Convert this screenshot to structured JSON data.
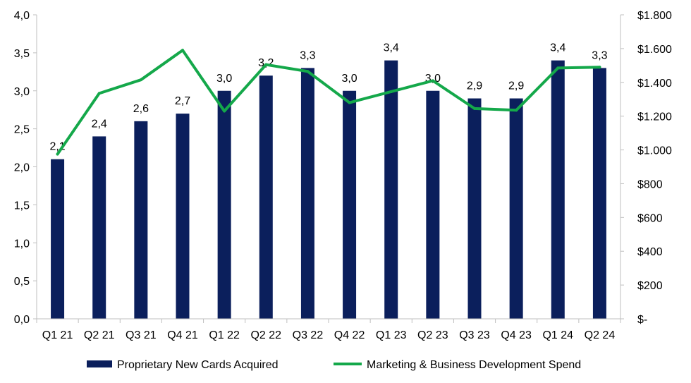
{
  "chart_data": {
    "type": "bar+line",
    "categories": [
      "Q1 21",
      "Q2 21",
      "Q3 21",
      "Q4 21",
      "Q1 22",
      "Q2 22",
      "Q3 22",
      "Q4 22",
      "Q1 23",
      "Q2 23",
      "Q3 23",
      "Q4 23",
      "Q1 24",
      "Q2 24"
    ],
    "series": [
      {
        "name": "Proprietary New Cards Acquired",
        "type": "bar",
        "axis": "left",
        "color": "#0b1f5c",
        "values": [
          2.1,
          2.4,
          2.6,
          2.7,
          3.0,
          3.2,
          3.3,
          3.0,
          3.4,
          3.0,
          2.9,
          2.9,
          3.4,
          3.3
        ],
        "labels": [
          "2,1",
          "2,4",
          "2,6",
          "2,7",
          "3,0",
          "3,2",
          "3,3",
          "3,0",
          "3,4",
          "3,0",
          "2,9",
          "2,9",
          "3,4",
          "3,3"
        ]
      },
      {
        "name": "Marketing & Business Development Spend",
        "type": "line",
        "axis": "right",
        "color": "#14a84a",
        "values": [
          975,
          1335,
          1415,
          1590,
          1230,
          1505,
          1465,
          1280,
          1345,
          1410,
          1245,
          1235,
          1485,
          1490
        ]
      }
    ],
    "y_left": {
      "range": [
        0,
        4.0
      ],
      "ticks": [
        0,
        0.5,
        1.0,
        1.5,
        2.0,
        2.5,
        3.0,
        3.5,
        4.0
      ],
      "tick_labels": [
        "0,0",
        "0,5",
        "1,0",
        "1,5",
        "2,0",
        "2,5",
        "3,0",
        "3,5",
        "4,0"
      ]
    },
    "y_right": {
      "range": [
        0,
        1800
      ],
      "ticks": [
        0,
        200,
        400,
        600,
        800,
        1000,
        1200,
        1400,
        1600,
        1800
      ],
      "tick_labels": [
        "$-",
        "$200",
        "$400",
        "$600",
        "$800",
        "$1.000",
        "$1.200",
        "$1.400",
        "$1.600",
        "$1.800"
      ]
    },
    "legend": {
      "position": "bottom",
      "entries": [
        "Proprietary New Cards Acquired",
        "Marketing & Business Development Spend"
      ]
    },
    "grid": false
  }
}
